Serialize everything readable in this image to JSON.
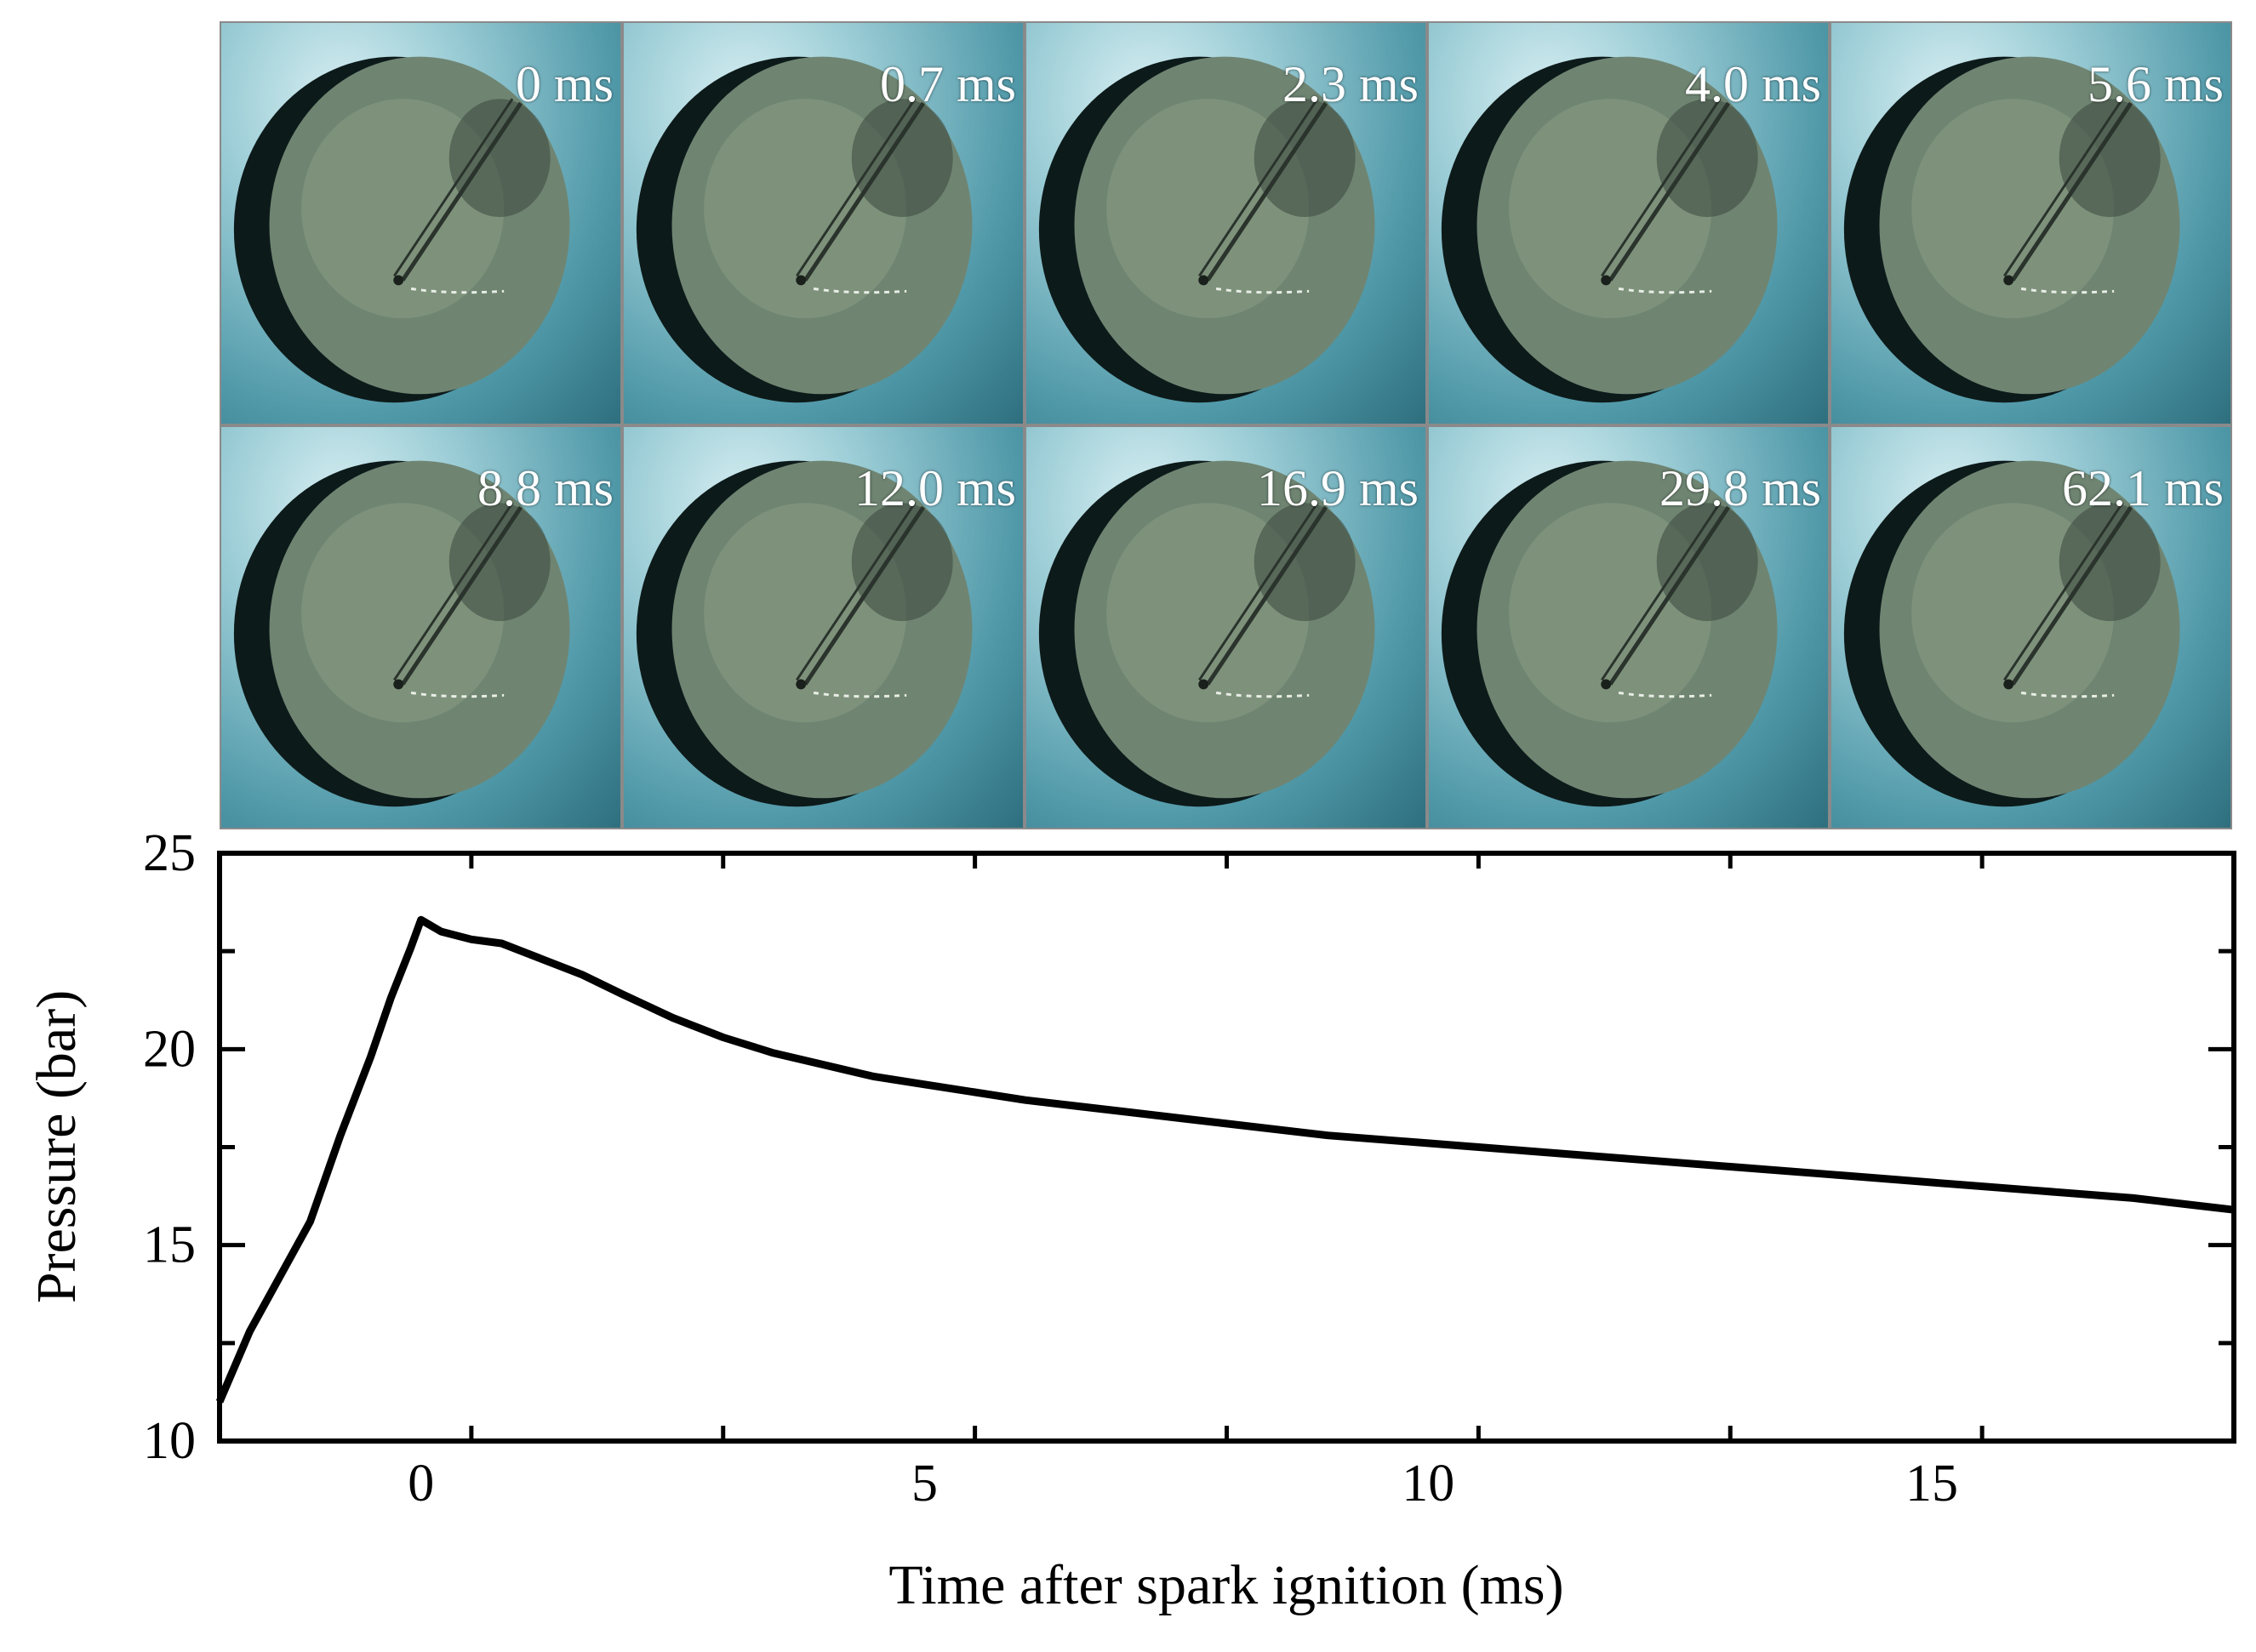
{
  "frames": [
    {
      "label": "0 ms"
    },
    {
      "label": "0.7 ms"
    },
    {
      "label": "2.3 ms"
    },
    {
      "label": "4.0 ms"
    },
    {
      "label": "5.6 ms"
    },
    {
      "label": "8.8 ms"
    },
    {
      "label": "12.0 ms"
    },
    {
      "label": "16.9 ms"
    },
    {
      "label": "29.8 ms"
    },
    {
      "label": "62.1 ms"
    }
  ],
  "colors": {
    "line": "#000000",
    "frame_border": "#8a8a8a",
    "label_text": "#ffffff"
  },
  "chart_data": {
    "type": "line",
    "xlabel": "Time after spark ignition (ms)",
    "ylabel": "Pressure (bar)",
    "xlim": [
      -2,
      18
    ],
    "ylim": [
      10,
      25
    ],
    "xticks": [
      0,
      5,
      10,
      15
    ],
    "yticks": [
      10,
      15,
      20,
      25
    ],
    "grid": false,
    "series": [
      {
        "x": [
          -2,
          -1.7,
          -1.4,
          -1.1,
          -0.8,
          -0.5,
          -0.3,
          -0.1,
          0,
          0.2,
          0.5,
          0.8,
          1.2,
          1.6,
          2.0,
          2.5,
          3.0,
          3.5,
          4.0,
          4.5,
          5.0,
          6.0,
          7.0,
          8.0,
          9.0,
          10.0,
          11.0,
          12.0,
          13.0,
          14.0,
          15.0,
          16.0,
          17.0,
          18.0
        ],
        "y": [
          11.0,
          12.8,
          14.2,
          15.6,
          17.8,
          19.8,
          21.3,
          22.6,
          23.3,
          23.0,
          22.8,
          22.7,
          22.3,
          21.9,
          21.4,
          20.8,
          20.3,
          19.9,
          19.6,
          19.3,
          19.1,
          18.7,
          18.4,
          18.1,
          17.8,
          17.6,
          17.4,
          17.2,
          17.0,
          16.8,
          16.6,
          16.4,
          16.2,
          15.9
        ]
      }
    ]
  }
}
